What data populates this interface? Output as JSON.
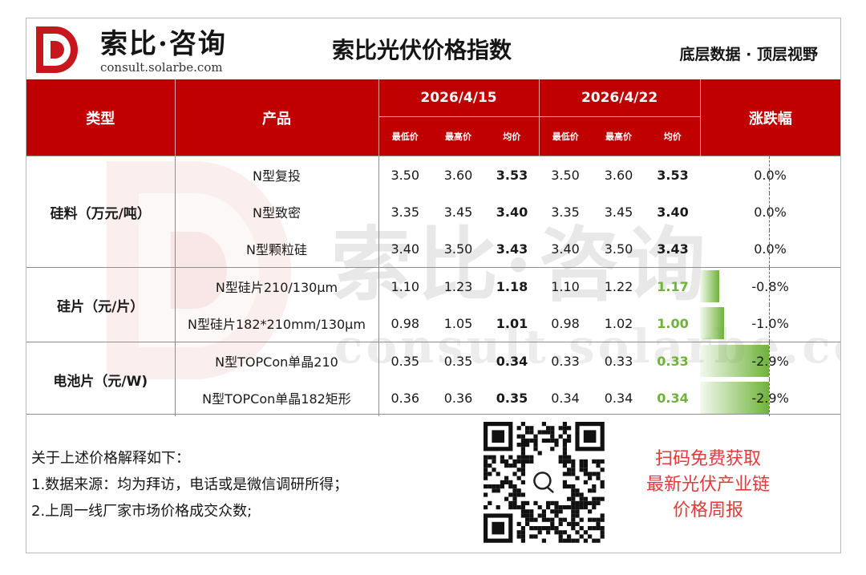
{
  "brand": {
    "name_cn": "索比·咨询",
    "url": "consult.solarbe.com"
  },
  "title": "索比光伏价格指数",
  "slogan": "底层数据 · 顶层视野",
  "table": {
    "headers": {
      "type": "类型",
      "product": "产品",
      "date1": "2026/4/15",
      "date2": "2026/4/22",
      "change": "涨跌幅",
      "sub": [
        "最低价",
        "最高价",
        "均价",
        "最低价",
        "最高价",
        "均价"
      ]
    },
    "groups": [
      {
        "type": "硅料（万元/吨）",
        "rows": [
          {
            "product": "N型复投",
            "d1": [
              "3.50",
              "3.60",
              "3.53"
            ],
            "d2": [
              "3.50",
              "3.60",
              "3.53"
            ],
            "change": "0.0%",
            "change_value": 0.0
          },
          {
            "product": "N型致密",
            "d1": [
              "3.35",
              "3.45",
              "3.40"
            ],
            "d2": [
              "3.35",
              "3.45",
              "3.40"
            ],
            "change": "0.0%",
            "change_value": 0.0
          },
          {
            "product": "N型颗粒硅",
            "d1": [
              "3.40",
              "3.50",
              "3.43"
            ],
            "d2": [
              "3.40",
              "3.50",
              "3.43"
            ],
            "change": "0.0%",
            "change_value": 0.0
          }
        ]
      },
      {
        "type": "硅片（元/片）",
        "rows": [
          {
            "product": "N型硅片210/130μm",
            "d1": [
              "1.10",
              "1.23",
              "1.18"
            ],
            "d2": [
              "1.10",
              "1.22",
              "1.17"
            ],
            "change": "-0.8%",
            "change_value": -0.8
          },
          {
            "product": "N型硅片182*210mm/130μm",
            "d1": [
              "0.98",
              "1.05",
              "1.01"
            ],
            "d2": [
              "0.98",
              "1.02",
              "1.00"
            ],
            "change": "-1.0%",
            "change_value": -1.0
          }
        ]
      },
      {
        "type": "电池片（元/W)",
        "rows": [
          {
            "product": "N型TOPCon单晶210",
            "d1": [
              "0.35",
              "0.35",
              "0.34"
            ],
            "d2": [
              "0.33",
              "0.33",
              "0.33"
            ],
            "change": "-2.9%",
            "change_value": -2.9
          },
          {
            "product": "N型TOPCon单晶182矩形",
            "d1": [
              "0.36",
              "0.36",
              "0.35"
            ],
            "d2": [
              "0.34",
              "0.34",
              "0.34"
            ],
            "change": "-2.9%",
            "change_value": -2.9
          }
        ]
      }
    ]
  },
  "notes": {
    "heading": "关于上述价格解释如下：",
    "line1": "1.数据来源：均为拜访，电话或是微信调研所得；",
    "line2": "2.上周一线厂家市场价格成交众数;"
  },
  "promo": {
    "line1": "扫码免费获取",
    "line2": "最新光伏产业链",
    "line3": "价格周报"
  },
  "colors": {
    "header_red": "#c00000",
    "down_green": "#6fb33a",
    "promo_red": "#e23a3a"
  }
}
